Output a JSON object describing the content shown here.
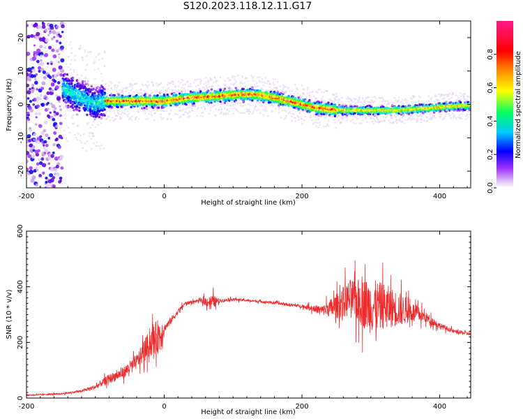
{
  "figure": {
    "title": "S120.2023.118.12.11.G17"
  },
  "chart_data": [
    {
      "type": "heatmap",
      "xlabel": "Height of straight line (km)",
      "ylabel": "Frequency (Hz)",
      "xlim": [
        -200,
        445
      ],
      "ylim": [
        -25,
        25
      ],
      "xticks": [
        -200,
        0,
        200,
        400
      ],
      "yticks": [
        -20,
        -10,
        0,
        10,
        20
      ],
      "grid": false,
      "colorbar": {
        "label": "Normalized spectral amplitude",
        "range": [
          0,
          1
        ],
        "ticks": [
          "0.0",
          "0.2",
          "0.4",
          "0.6",
          "0.8"
        ],
        "tick_values": [
          0.0,
          0.2,
          0.4,
          0.6,
          0.8
        ],
        "colors": [
          "#ffffff",
          "#d9b8f0",
          "#8a2be2",
          "#0000ff",
          "#00e5ff",
          "#00ff00",
          "#ffff00",
          "#ff8000",
          "#ff0000",
          "#ff0080"
        ]
      },
      "ridge": {
        "x": [
          -160,
          -140,
          -120,
          -100,
          -90,
          -80,
          -60,
          -40,
          -20,
          0,
          20,
          40,
          60,
          80,
          100,
          120,
          140,
          160,
          180,
          200,
          220,
          240,
          260,
          280,
          300,
          320,
          340,
          360,
          380,
          400,
          420,
          445
        ],
        "y": [
          6,
          4,
          2,
          0,
          1,
          1,
          1,
          1,
          1,
          1,
          1.5,
          2,
          2.2,
          2.5,
          2.8,
          3,
          2.8,
          2,
          1,
          0,
          -1,
          -1.5,
          -1.8,
          -1.8,
          -1.8,
          -1.8,
          -1.7,
          -1.5,
          -1.2,
          -0.8,
          -0.5,
          -0.4
        ]
      }
    },
    {
      "type": "line",
      "xlabel": "Height of straight line (km)",
      "ylabel": "SNR (10 * v/v)",
      "xlim": [
        -200,
        445
      ],
      "ylim": [
        0,
        600
      ],
      "xticks": [
        -200,
        0,
        200,
        400
      ],
      "yticks": [
        0,
        200,
        400,
        600
      ],
      "grid": false,
      "series": [
        {
          "color": "#ee2a2a",
          "envelope": {
            "x": [
              -200,
              -150,
              -120,
              -100,
              -80,
              -60,
              -40,
              -20,
              -5,
              0,
              10,
              20,
              30,
              50,
              70,
              80,
              100,
              150,
              200,
              230,
              250,
              270,
              290,
              300,
              320,
              340,
              360,
              380,
              400,
              420,
              445
            ],
            "mean": [
              10,
              15,
              25,
              40,
              70,
              90,
              130,
              200,
              230,
              250,
              280,
              310,
              340,
              350,
              345,
              350,
              355,
              345,
              330,
              315,
              330,
              360,
              340,
              330,
              330,
              320,
              310,
              290,
              260,
              240,
              230
            ],
            "spread": [
              4,
              6,
              8,
              20,
              35,
              45,
              60,
              110,
              150,
              30,
              30,
              20,
              15,
              10,
              60,
              15,
              10,
              10,
              12,
              40,
              100,
              150,
              200,
              220,
              180,
              140,
              80,
              40,
              25,
              15,
              15
            ]
          }
        }
      ]
    }
  ]
}
